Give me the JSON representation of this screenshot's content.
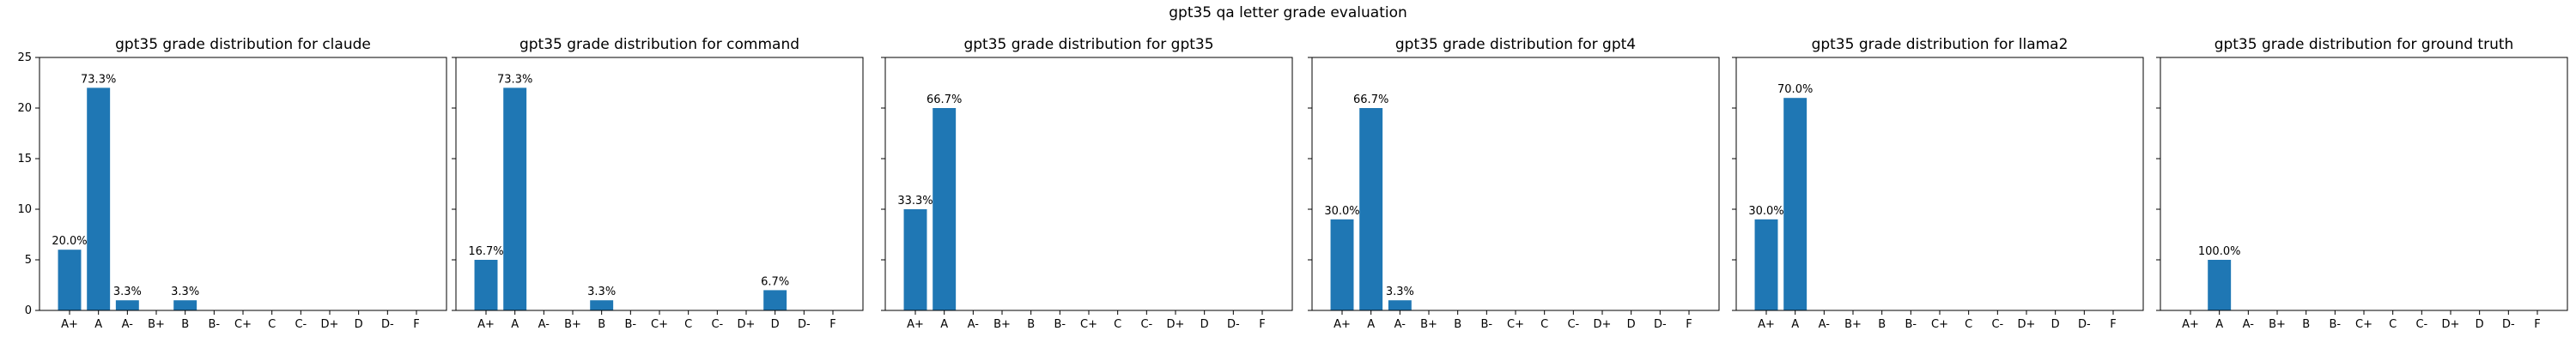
{
  "suptitle": "gpt35 qa letter grade evaluation",
  "colors": {
    "bar": "#1f77b4",
    "axis": "#000000"
  },
  "chart_data": [
    {
      "type": "bar",
      "title": "gpt35 grade distribution for claude",
      "categories": [
        "A+",
        "A",
        "A-",
        "B+",
        "B",
        "B-",
        "C+",
        "C",
        "C-",
        "D+",
        "D",
        "D-",
        "F"
      ],
      "values": [
        6,
        22,
        1,
        0,
        1,
        0,
        0,
        0,
        0,
        0,
        0,
        0,
        0
      ],
      "labels": [
        "20.0%",
        "73.3%",
        "3.3%",
        "",
        "3.3%",
        "",
        "",
        "",
        "",
        "",
        "",
        "",
        ""
      ],
      "ylim": [
        0,
        25
      ],
      "yticks": [
        0,
        5,
        10,
        15,
        20,
        25
      ]
    },
    {
      "type": "bar",
      "title": "gpt35 grade distribution for command",
      "categories": [
        "A+",
        "A",
        "A-",
        "B+",
        "B",
        "B-",
        "C+",
        "C",
        "C-",
        "D+",
        "D",
        "D-",
        "F"
      ],
      "values": [
        5,
        22,
        0,
        0,
        1,
        0,
        0,
        0,
        0,
        0,
        2,
        0,
        0
      ],
      "labels": [
        "16.7%",
        "73.3%",
        "",
        "",
        "3.3%",
        "",
        "",
        "",
        "",
        "",
        "6.7%",
        "",
        ""
      ],
      "ylim": [
        0,
        25
      ],
      "yticks": [
        0,
        5,
        10,
        15,
        20,
        25
      ]
    },
    {
      "type": "bar",
      "title": "gpt35 grade distribution for gpt35",
      "categories": [
        "A+",
        "A",
        "A-",
        "B+",
        "B",
        "B-",
        "C+",
        "C",
        "C-",
        "D+",
        "D",
        "D-",
        "F"
      ],
      "values": [
        10,
        20,
        0,
        0,
        0,
        0,
        0,
        0,
        0,
        0,
        0,
        0,
        0
      ],
      "labels": [
        "33.3%",
        "66.7%",
        "",
        "",
        "",
        "",
        "",
        "",
        "",
        "",
        "",
        "",
        ""
      ],
      "ylim": [
        0,
        25
      ],
      "yticks": [
        0,
        5,
        10,
        15,
        20,
        25
      ]
    },
    {
      "type": "bar",
      "title": "gpt35 grade distribution for gpt4",
      "categories": [
        "A+",
        "A",
        "A-",
        "B+",
        "B",
        "B-",
        "C+",
        "C",
        "C-",
        "D+",
        "D",
        "D-",
        "F"
      ],
      "values": [
        9,
        20,
        1,
        0,
        0,
        0,
        0,
        0,
        0,
        0,
        0,
        0,
        0
      ],
      "labels": [
        "30.0%",
        "66.7%",
        "3.3%",
        "",
        "",
        "",
        "",
        "",
        "",
        "",
        "",
        "",
        ""
      ],
      "ylim": [
        0,
        25
      ],
      "yticks": [
        0,
        5,
        10,
        15,
        20,
        25
      ]
    },
    {
      "type": "bar",
      "title": "gpt35 grade distribution for llama2",
      "categories": [
        "A+",
        "A",
        "A-",
        "B+",
        "B",
        "B-",
        "C+",
        "C",
        "C-",
        "D+",
        "D",
        "D-",
        "F"
      ],
      "values": [
        9,
        21,
        0,
        0,
        0,
        0,
        0,
        0,
        0,
        0,
        0,
        0,
        0
      ],
      "labels": [
        "30.0%",
        "70.0%",
        "",
        "",
        "",
        "",
        "",
        "",
        "",
        "",
        "",
        "",
        ""
      ],
      "ylim": [
        0,
        25
      ],
      "yticks": [
        0,
        5,
        10,
        15,
        20,
        25
      ]
    },
    {
      "type": "bar",
      "title": "gpt35 grade distribution for ground truth",
      "categories": [
        "A+",
        "A",
        "A-",
        "B+",
        "B",
        "B-",
        "C+",
        "C",
        "C-",
        "D+",
        "D",
        "D-",
        "F"
      ],
      "values": [
        0,
        5,
        0,
        0,
        0,
        0,
        0,
        0,
        0,
        0,
        0,
        0,
        0
      ],
      "labels": [
        "",
        "100.0%",
        "",
        "",
        "",
        "",
        "",
        "",
        "",
        "",
        "",
        "",
        ""
      ],
      "ylim": [
        0,
        25
      ],
      "yticks": [
        0,
        5,
        10,
        15,
        20,
        25
      ]
    }
  ]
}
